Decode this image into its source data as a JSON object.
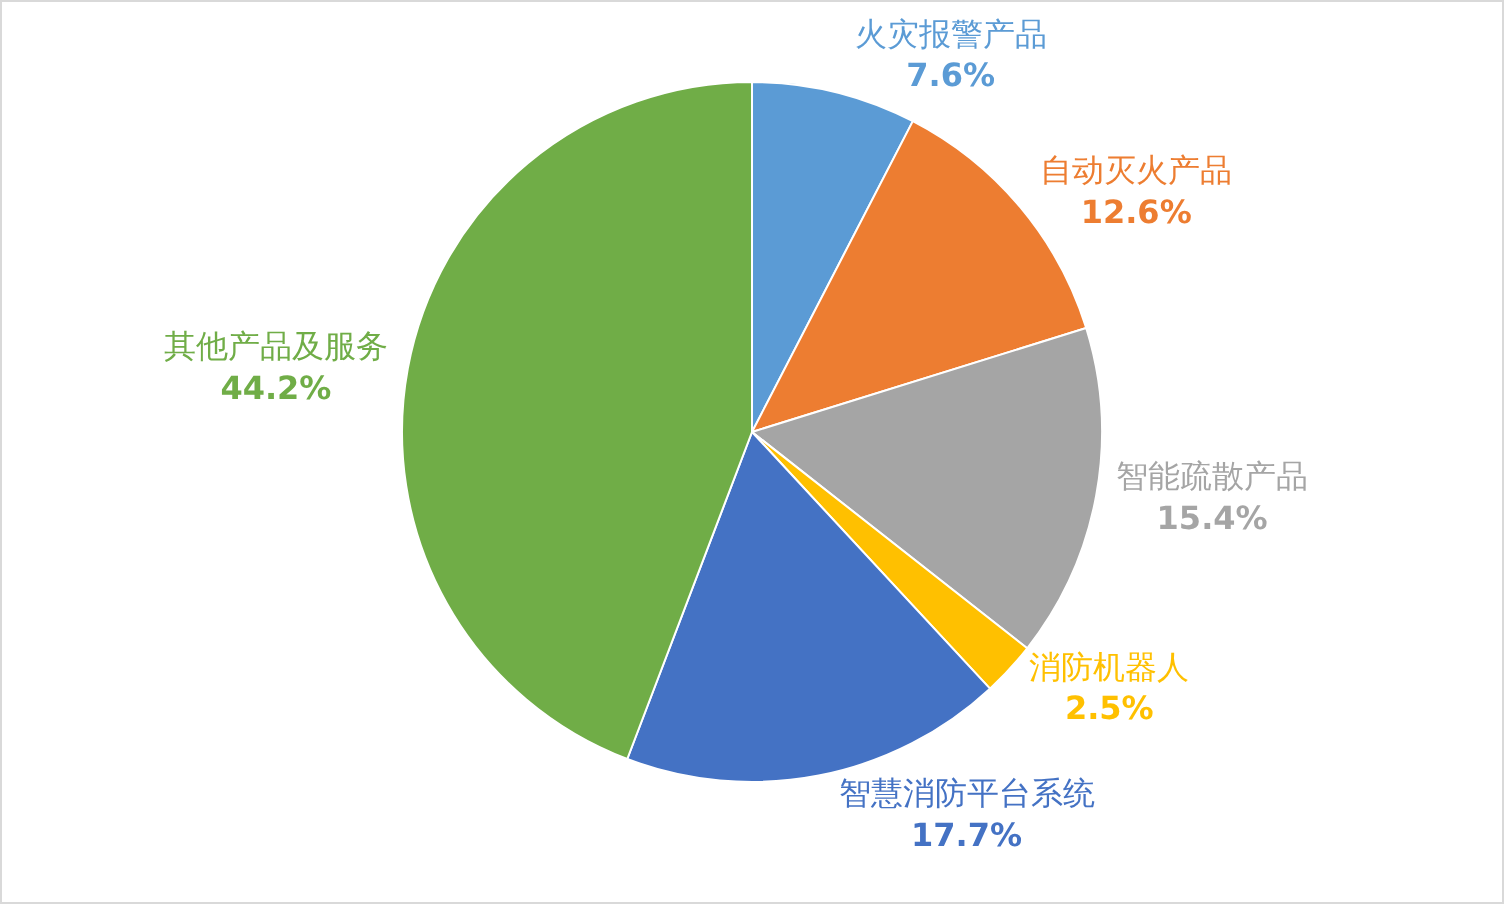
{
  "chart_data": {
    "type": "pie",
    "categories": [
      "火灾报警产品",
      "自动灭火产品",
      "智能疏散产品",
      "消防机器人",
      "智慧消防平台系统",
      "其他产品及服务"
    ],
    "values": [
      7.6,
      12.6,
      15.4,
      2.5,
      17.7,
      44.2
    ],
    "colors": [
      "#5b9bd5",
      "#ed7d31",
      "#a5a5a5",
      "#ffc000",
      "#4472c4",
      "#70ad47"
    ],
    "value_labels": [
      "7.6%",
      "12.6%",
      "15.4%",
      "2.5%",
      "17.7%",
      "44.2%"
    ],
    "legend": false
  }
}
